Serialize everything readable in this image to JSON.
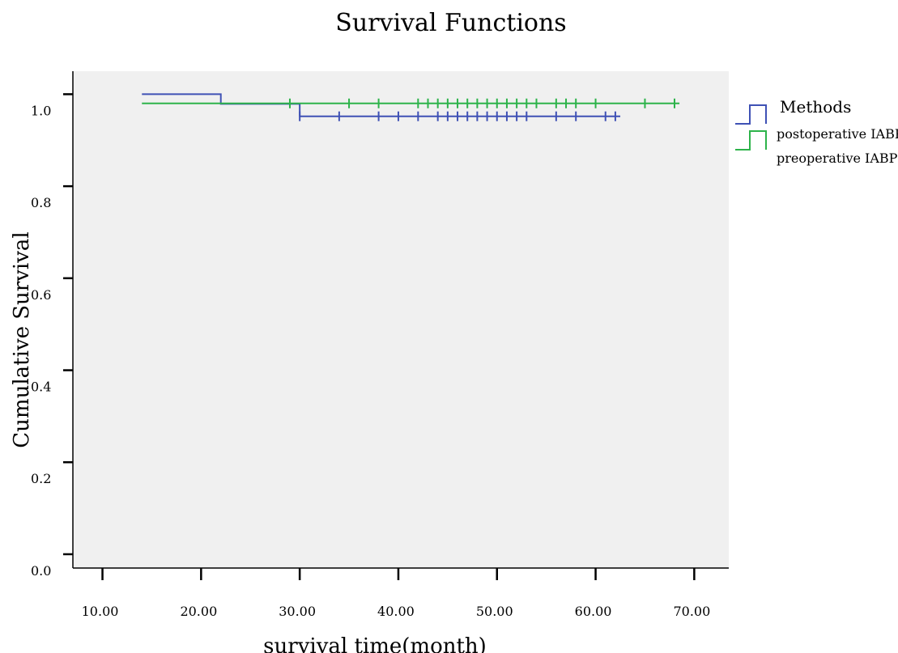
{
  "chart_data": {
    "type": "line",
    "title": "Survival Functions",
    "xlabel": "survival time(month)",
    "ylabel": "Cumulative Survival",
    "xlim": [
      7,
      73.5
    ],
    "ylim": [
      -0.03,
      1.05
    ],
    "xticks": [
      10,
      20,
      30,
      40,
      50,
      60,
      70
    ],
    "xtick_labels": [
      "10.00",
      "20.00",
      "30.00",
      "40.00",
      "50.00",
      "60.00",
      "70.00"
    ],
    "yticks": [
      0.0,
      0.2,
      0.4,
      0.6,
      0.8,
      1.0
    ],
    "ytick_labels": [
      "0.0",
      "0.2",
      "0.4",
      "0.6",
      "0.8",
      "1.0"
    ],
    "grid": false,
    "plot_background": "#f0f0f0",
    "legend": {
      "title": "Methods",
      "position": "right-top"
    },
    "series": [
      {
        "name": "postoperative IABP",
        "color": "#3f51b5",
        "steps": [
          [
            14,
            1.0
          ],
          [
            22,
            0.979
          ],
          [
            30,
            0.952
          ],
          [
            62.5,
            0.952
          ]
        ],
        "censored": [
          30,
          34,
          38,
          40,
          42,
          44,
          45,
          46,
          47,
          48,
          49,
          50,
          51,
          52,
          53,
          56,
          58,
          61,
          62
        ]
      },
      {
        "name": "preoperative IABP",
        "color": "#2db34a",
        "steps": [
          [
            14,
            0.98
          ],
          [
            68.5,
            0.98
          ]
        ],
        "censored": [
          29,
          35,
          38,
          42,
          43,
          44,
          45,
          46,
          47,
          48,
          49,
          50,
          51,
          52,
          53,
          54,
          56,
          57,
          58,
          60,
          65,
          68
        ]
      }
    ]
  }
}
